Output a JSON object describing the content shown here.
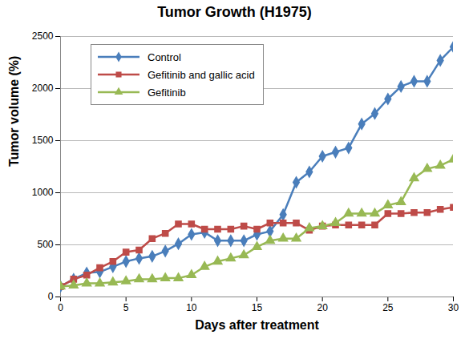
{
  "chart_data": {
    "type": "line",
    "title": "Tumor Growth (H1975)",
    "x_label": "Days after treatment",
    "y_label": "Tumor volume (%)",
    "x": [
      0,
      1,
      2,
      3,
      4,
      5,
      6,
      7,
      8,
      9,
      10,
      11,
      12,
      13,
      14,
      15,
      16,
      17,
      18,
      19,
      20,
      21,
      22,
      23,
      24,
      25,
      26,
      27,
      28,
      29,
      30
    ],
    "series": [
      {
        "name": "Control",
        "color": "#4a7ebb",
        "marker": "diamond",
        "values": [
          100,
          170,
          230,
          240,
          290,
          340,
          370,
          390,
          440,
          510,
          600,
          620,
          540,
          540,
          540,
          600,
          630,
          790,
          1100,
          1200,
          1350,
          1390,
          1430,
          1660,
          1760,
          1900,
          2020,
          2070,
          2070,
          2270,
          2400
        ]
      },
      {
        "name": "Gefitinib and gallic acid",
        "color": "#be4b48",
        "marker": "square",
        "values": [
          100,
          170,
          210,
          280,
          340,
          430,
          450,
          560,
          610,
          700,
          700,
          650,
          650,
          650,
          680,
          650,
          710,
          710,
          710,
          640,
          680,
          690,
          690,
          690,
          690,
          800,
          800,
          810,
          810,
          840,
          860
        ]
      },
      {
        "name": "Gefitinib",
        "color": "#98b954",
        "marker": "triangle",
        "values": [
          100,
          110,
          130,
          130,
          140,
          150,
          170,
          170,
          180,
          180,
          210,
          290,
          340,
          370,
          400,
          480,
          540,
          560,
          560,
          660,
          680,
          710,
          800,
          800,
          800,
          880,
          910,
          1140,
          1230,
          1260,
          1320
        ]
      }
    ],
    "xlim": [
      0,
      30
    ],
    "xticks": [
      0,
      5,
      10,
      15,
      20,
      25,
      30
    ],
    "ylim": [
      0,
      2500
    ],
    "yticks": [
      0,
      500,
      1000,
      1500,
      2000,
      2500
    ],
    "grid": true,
    "legend": "top-left"
  }
}
